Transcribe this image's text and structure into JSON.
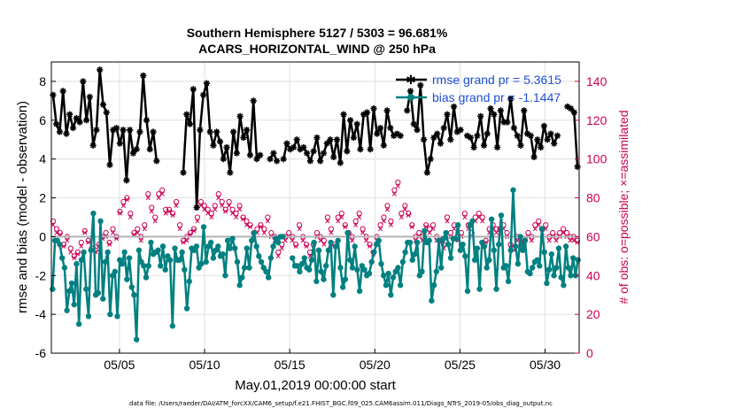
{
  "chart_data": {
    "type": "line",
    "title": "Southern Hemisphere 5127 / 5303 = 96.681%",
    "subtitle": "ACARS_HORIZONTAL_WIND @ 250 hPa",
    "xlabel": "May.01,2019 00:00:00 start",
    "ylabel": "rmse and bias (model - observation)",
    "ylabel_right": "# of obs: o=possible; ×=assimilated",
    "footer": "data file: /Users/raeder/DAI/ATM_forcXX/CAM6_setup/f.e21.FHIST_BGC.f09_025.CAM6assim.011/Diags_NTrS_2019-05/obs_diag_output.nc",
    "xlim": [
      1.0,
      32.0
    ],
    "ylim": [
      -6,
      9
    ],
    "ylim_right": [
      0,
      150
    ],
    "x_ticks": [
      5,
      10,
      15,
      20,
      25,
      30
    ],
    "x_tick_labels": [
      "05/05",
      "05/10",
      "05/15",
      "05/20",
      "05/25",
      "05/30"
    ],
    "y_ticks": [
      -6,
      -4,
      -2,
      0,
      2,
      4,
      6,
      8
    ],
    "y_tick_labels": [
      "-6",
      "-4",
      "-2",
      "0",
      "2",
      "4",
      "6",
      "8"
    ],
    "y_right_ticks": [
      0,
      20,
      40,
      60,
      80,
      100,
      120,
      140
    ],
    "y_right_tick_labels": [
      "0",
      "20",
      "40",
      "60",
      "80",
      "100",
      "120",
      "140"
    ],
    "grid": true,
    "legend_position": "top-right",
    "zero_line": 0,
    "series": [
      {
        "name": "rmse grand pr = 5.3615",
        "color": "#000000",
        "marker": "asterisk",
        "values": [
          7.3,
          5.8,
          5.4,
          7.5,
          5.3,
          6.3,
          5.6,
          6.1,
          5.9,
          8.0,
          6.0,
          7.2,
          4.7,
          5.5,
          8.6,
          6.8,
          6.4,
          3.7,
          5.5,
          5.6,
          4.8,
          5.5,
          2.9,
          5.5,
          4.3,
          4.5,
          5.4,
          8.3,
          6.0,
          4.5,
          5.4,
          3.9,
          null,
          null,
          null,
          null,
          null,
          null,
          null,
          3.3,
          6.3,
          5.8,
          7.6,
          1.5,
          5.5,
          7.3,
          7.9,
          5.4,
          4.7,
          5.4,
          4.9,
          4.0,
          4.6,
          3.3,
          5.4,
          4.3,
          6.2,
          5.1,
          5.5,
          4.2,
          7.0,
          4.0,
          4.2,
          null,
          null,
          4.0,
          4.3,
          3.9,
          null,
          4.0,
          4.8,
          4.5,
          4.6,
          5.0,
          4.5,
          4.6,
          4.3,
          3.9,
          4.4,
          5.1,
          3.9,
          4.3,
          4.8,
          5.0,
          4.1,
          5.0,
          3.8,
          6.3,
          4.4,
          6.0,
          5.1,
          5.8,
          4.5,
          6.3,
          6.4,
          4.5,
          6.6,
          5.3,
          5.6,
          4.7,
          6.5,
          5.6,
          5.2,
          5.3,
          5.2,
          null,
          6.5,
          7.5,
          5.8,
          5.5,
          7.8,
          5.0,
          3.3,
          4.0,
          5.1,
          5.3,
          4.8,
          5.6,
          6.3,
          5.0,
          6.7,
          5.4,
          5.5,
          null,
          5.2,
          5.1,
          4.6,
          5.2,
          6.2,
          4.7,
          5.3,
          6.6,
          6.3,
          4.6,
          6.5,
          5.9,
          5.9,
          7.1,
          5.6,
          5.2,
          4.7,
          6.5,
          5.3,
          5.2,
          4.1,
          5.0,
          4.6,
          5.7,
          5.0,
          5.3,
          4.8,
          5.2,
          null,
          null,
          6.7,
          6.6,
          6.4,
          3.6
        ]
      },
      {
        "name": "bias grand pr = -1.1447",
        "color": "#008080",
        "marker": "circle",
        "values": [
          -2.7,
          -0.2,
          -0.2,
          -0.4,
          -1.1,
          -1.6,
          -3.8,
          -2.8,
          -2.4,
          -3.5,
          -1.4,
          -4.5,
          -1.2,
          -0.8,
          -2.7,
          -4.1,
          -0.7,
          1.2,
          -3.0,
          -2.9,
          0.8,
          -3.2,
          -1.3,
          -0.8,
          -4.0,
          -2.0,
          -1.8,
          -4.1,
          -1.2,
          -1.4,
          -0.8,
          -2.2,
          -1.1,
          -2.6,
          -3.0,
          -5.3,
          -0.7,
          -1.3,
          -1.5,
          -2.1,
          -1.5,
          -0.3,
          -0.9,
          -0.8,
          -0.7,
          -1.5,
          -0.5,
          -1.7,
          -1.0,
          -1.2,
          -4.6,
          -0.6,
          -1.2,
          -1.2,
          -0.8,
          -1.7,
          -3.7,
          -2.3,
          -0.6,
          -0.7,
          -0.5,
          -1.6,
          -1.4,
          0.5,
          -1.3,
          -0.5,
          -0.3,
          -1.1,
          -0.7,
          -0.5,
          -1.0,
          -0.9,
          -2.0,
          -0.2,
          -0.6,
          -0.1,
          -0.6,
          -1.3,
          -2.5,
          -2.1,
          -1.6,
          -0.6,
          -1.6,
          -0.2,
          0.2,
          -0.5,
          -1.0,
          -1.3,
          -1.6,
          -1.8,
          -2.1,
          -1.1,
          -0.5,
          -0.1,
          -0.3,
          0.0,
          0.0,
          null,
          null,
          null,
          -1.1,
          -1.5,
          -1.5,
          -1.8,
          -1.4,
          -1.1,
          -1.6,
          -1.7,
          -1.2,
          -0.3,
          -2.3,
          -0.7,
          -1.8,
          -2.2,
          -1.5,
          -0.7,
          -0.3,
          -3.0,
          -0.5,
          -0.2,
          -1.6,
          -2.6,
          -2.2,
          0.2,
          -1.2,
          -1.6,
          -0.5,
          -1.7,
          -2.8,
          -1.5,
          -1.7,
          -2.0,
          -1.9,
          -1.3,
          -0.8,
          -0.4,
          -0.2,
          -1.4,
          -2.0,
          -2.5,
          -1.9,
          -3.0,
          -2.1,
          -1.8,
          -1.6,
          -2.5,
          -1.3,
          -0.8,
          -0.3,
          -0.3,
          -1.2,
          -0.9,
          -0.3,
          -2.0,
          -1.8,
          0.3,
          -0.3,
          -0.2,
          -3.3,
          -2.5,
          -1.8,
          -0.2,
          -1.6,
          -0.1,
          0.2,
          -0.4,
          -1.1,
          -0.1,
          -0.1,
          0.6,
          -0.7,
          -0.4,
          -1.0,
          -2.8,
          0.6,
          0.8,
          -1.2,
          -0.6,
          -2.7,
          -0.3,
          -0.5,
          -1.6,
          -1.2,
          0.9,
          -0.7,
          -2.7,
          -0.4,
          1.1,
          -1.6,
          -1.5,
          -2.3,
          -0.7,
          2.4,
          -0.5,
          -1.4,
          0.0,
          -0.7,
          -0.2,
          -1.8,
          -1.9,
          -1.6,
          -1.3,
          -1.2,
          -1.5,
          0.4,
          -0.8,
          -2.4,
          -1.7,
          -0.9,
          -2.0,
          -1.6,
          -0.6,
          -2.1,
          -2.5,
          -0.5,
          -1.6,
          -2.0,
          -1.1,
          -2.0,
          -1.2
        ]
      }
    ],
    "obs_possible_count": [
      68,
      64,
      62,
      56,
      60,
      54,
      50,
      52,
      57,
      63,
      58,
      54,
      53,
      56,
      60,
      62,
      57,
      64,
      60,
      73,
      78,
      80,
      72,
      62,
      64,
      60,
      66,
      82,
      75,
      70,
      82,
      84,
      74,
      74,
      72,
      78,
      66,
      58,
      60,
      62,
      64,
      70,
      78,
      76,
      74,
      72,
      76,
      82,
      78,
      74,
      78,
      74,
      72,
      76,
      70,
      68,
      66,
      62,
      64,
      66,
      64,
      70,
      62,
      60,
      52,
      56,
      60,
      62,
      60,
      56,
      66,
      60,
      56,
      52,
      56,
      62,
      60,
      58,
      70,
      64,
      56,
      70,
      72,
      66,
      62,
      60,
      68,
      72,
      64,
      60,
      56,
      52,
      60,
      66,
      70,
      76,
      68,
      84,
      88,
      72,
      76,
      72,
      66,
      60,
      62,
      60,
      66,
      64,
      66,
      60,
      58,
      56,
      70,
      62,
      66,
      60,
      62,
      72,
      66,
      62,
      70,
      72,
      70,
      58,
      64,
      66,
      64,
      64,
      66,
      62,
      56,
      54,
      60,
      56,
      58,
      62,
      60,
      66,
      68,
      64,
      66,
      60,
      62,
      60,
      62,
      64,
      62,
      60,
      60,
      58
    ],
    "obs_assimilated_count": [
      66,
      62,
      61,
      55,
      58,
      52,
      49,
      51,
      55,
      62,
      57,
      53,
      52,
      55,
      59,
      60,
      56,
      62,
      59,
      72,
      76,
      79,
      70,
      61,
      62,
      58,
      64,
      80,
      73,
      68,
      80,
      82,
      72,
      73,
      71,
      76,
      64,
      57,
      58,
      61,
      63,
      68,
      76,
      74,
      72,
      70,
      74,
      80,
      76,
      73,
      76,
      72,
      70,
      74,
      69,
      66,
      65,
      61,
      62,
      65,
      62,
      68,
      60,
      58,
      50,
      54,
      58,
      60,
      58,
      55,
      64,
      58,
      55,
      50,
      54,
      60,
      58,
      56,
      68,
      62,
      55,
      68,
      70,
      65,
      60,
      58,
      66,
      70,
      62,
      58,
      55,
      51,
      58,
      64,
      68,
      74,
      66,
      82,
      86,
      70,
      74,
      71,
      65,
      58,
      60,
      58,
      65,
      62,
      64,
      58,
      57,
      54,
      68,
      60,
      64,
      58,
      60,
      70,
      64,
      60,
      68,
      70,
      68,
      57,
      62,
      64,
      62,
      62,
      64,
      60,
      54,
      53,
      58,
      54,
      57,
      60,
      58,
      64,
      66,
      62,
      64,
      58,
      60,
      58,
      60,
      62,
      60,
      58,
      58,
      57
    ]
  },
  "legend": {
    "rmse_label": "rmse grand pr = 5.3615",
    "bias_label": "bias grand pr = -1.1447"
  }
}
